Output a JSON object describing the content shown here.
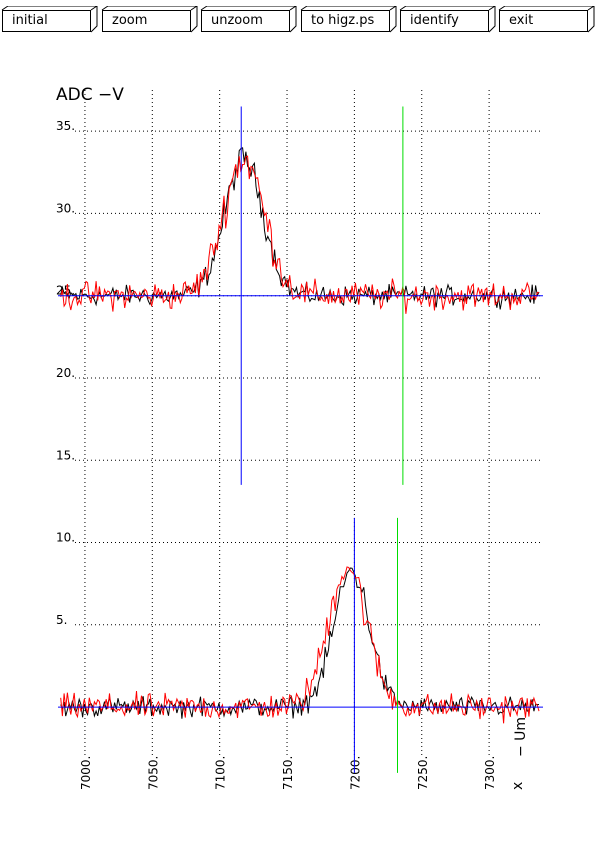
{
  "toolbar": {
    "buttons": [
      "initial",
      "zoom",
      "unzoom",
      "to higz.ps",
      "identify",
      "exit"
    ]
  },
  "chart_data": {
    "type": "line",
    "title": "ADC  −V",
    "xlabel": "x",
    "side_label": "− Um",
    "xlim": [
      6980,
      7340
    ],
    "ylim": [
      -2,
      37.5
    ],
    "x_ticks": [
      "7000.",
      "7050.",
      "7100.",
      "7150.",
      "7200.",
      "7250.",
      "7300."
    ],
    "x_tick_values": [
      7000,
      7050,
      7100,
      7150,
      7200,
      7250,
      7300
    ],
    "y_ticks": [
      "5.",
      "10.",
      "15.",
      "20.",
      "25.",
      "30.",
      "35."
    ],
    "y_tick_values": [
      5,
      10,
      15,
      20,
      25,
      30,
      35
    ],
    "grid": true,
    "colors": {
      "black": "#000000",
      "red": "#ff0000",
      "blue": "#0000ff",
      "green": "#00dd00"
    },
    "series": [
      {
        "color": "#000000",
        "baseline": 25,
        "peak_x": 7118,
        "peak_height": 8.3,
        "width": 27,
        "noise": 0.45
      },
      {
        "color": "#ff0000",
        "baseline": 25,
        "peak_x": 7118,
        "peak_height": 8.3,
        "width": 29,
        "noise": 0.65
      },
      {
        "color": "#000000",
        "baseline": 0,
        "peak_x": 7198,
        "peak_height": 8.3,
        "width": 25,
        "noise": 0.45
      },
      {
        "color": "#ff0000",
        "baseline": 0,
        "peak_x": 7195,
        "peak_height": 8.6,
        "width": 27,
        "noise": 0.6
      }
    ],
    "markers": {
      "top": {
        "h_level": 25,
        "y_range": [
          13.5,
          36.5
        ],
        "blue_x": 7116,
        "green_x": 7236
      },
      "bottom": {
        "h_level": 0,
        "y_range": [
          -4.0,
          11.5
        ],
        "blue_x": 7200,
        "green_x": 7232
      }
    }
  }
}
